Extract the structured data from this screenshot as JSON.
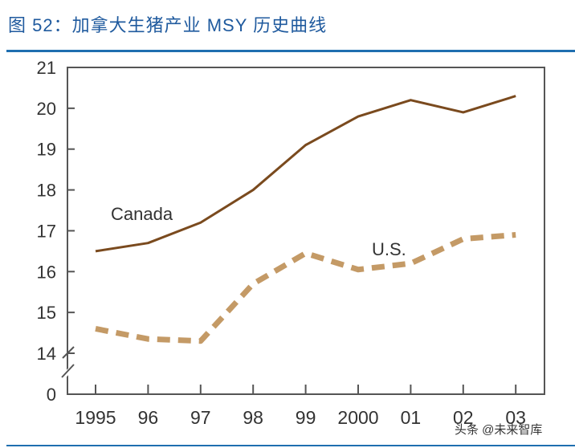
{
  "header": {
    "title": "图 52：加拿大生猪产业 MSY 历史曲线"
  },
  "watermark": "头条 @未来智库",
  "colors": {
    "canada": "#7a4a1e",
    "us": "#c49a66",
    "accent": "#1f6fb0"
  },
  "chart_data": {
    "type": "line",
    "title": "加拿大生猪产业 MSY 历史曲线",
    "xlabel": "",
    "ylabel": "",
    "categories": [
      "1995",
      "96",
      "97",
      "98",
      "99",
      "2000",
      "01",
      "02",
      "03"
    ],
    "yticks": [
      0,
      14,
      15,
      16,
      17,
      18,
      19,
      20,
      21
    ],
    "ylim": [
      14,
      21
    ],
    "axis_break": "between 0 and 14",
    "grid": false,
    "series": [
      {
        "name": "Canada",
        "style": "solid",
        "values": [
          16.5,
          16.7,
          17.2,
          18.0,
          19.1,
          19.8,
          20.2,
          19.9,
          20.3
        ]
      },
      {
        "name": "U.S.",
        "style": "dashed",
        "values": [
          14.6,
          14.35,
          14.3,
          15.7,
          16.45,
          16.05,
          16.2,
          16.8,
          16.9
        ]
      }
    ]
  }
}
